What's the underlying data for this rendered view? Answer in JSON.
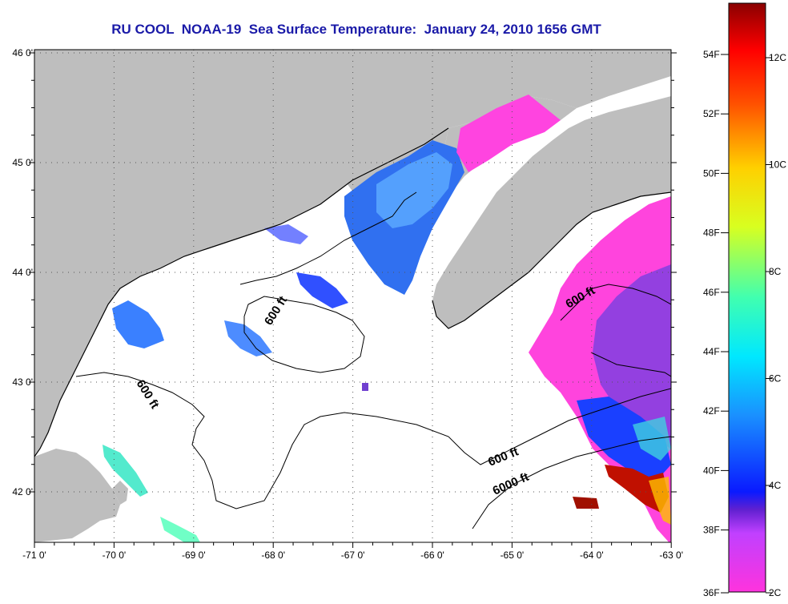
{
  "title": "RU COOL  NOAA-19  Sea Surface Temperature:  January 24, 2010 1656 GMT",
  "lat_labels": [
    "46 0'",
    "45 0'",
    "44 0'",
    "43 0'",
    "42 0'"
  ],
  "lon_labels": [
    "-71 0'",
    "-70 0'",
    "-69 0'",
    "-68 0'",
    "-67 0'",
    "-66 0'",
    "-65 0'",
    "-64 0'",
    "-63 0'"
  ],
  "contour_labels": [
    "600 ft",
    "600 ft",
    "600 ft",
    "600 ft",
    "6000 ft"
  ],
  "colorbar": {
    "f_labels": [
      "54F",
      "52F",
      "50F",
      "48F",
      "46F",
      "44F",
      "42F",
      "40F",
      "38F",
      "36F"
    ],
    "c_labels": [
      "12C",
      "10C",
      "8C",
      "6C",
      "4C",
      "2C"
    ]
  },
  "colors": {
    "land": "#bebebe",
    "title": "#1a1aa8"
  }
}
